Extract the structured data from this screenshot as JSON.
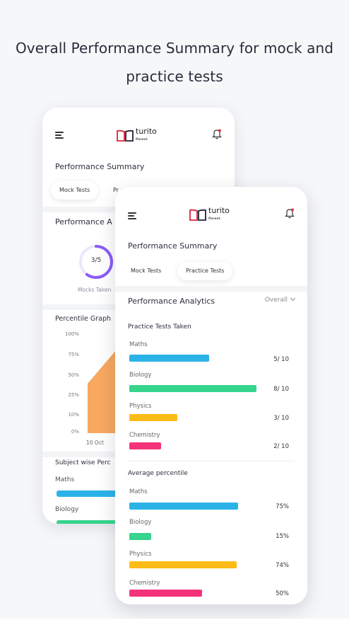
{
  "headline": {
    "line1": "Overall Performance Summary for mock and",
    "line2": "practice tests"
  },
  "logo": {
    "name": "turito",
    "sub": "Parent"
  },
  "colors": {
    "maths": "#2bb3e8",
    "biology": "#36d48c",
    "physics": "#fdbb15",
    "chemistry": "#f5337a",
    "ring": "#8b5cf6",
    "area": "#f8a860"
  },
  "back_phone": {
    "title": "Performance Summary",
    "tabs": [
      "Mock Tests",
      "Pr"
    ],
    "analytics_title": "Performance A",
    "ring_value": "3/5",
    "ring_fraction": 0.6,
    "ring_caption": "Mocks Taken",
    "graph_title": "Percentile Graph",
    "y_ticks": [
      "100%",
      "75%",
      "50%",
      "25%",
      "10%",
      "0%"
    ],
    "x_label": "10 Oct",
    "subject_title": "Subject wise Perc",
    "subjects": [
      "Maths",
      "Biology"
    ]
  },
  "front_phone": {
    "title": "Performance Summary",
    "tabs": [
      "Mock Tests",
      "Practice Tests"
    ],
    "analytics_title": "Performance Analytics",
    "dropdown_value": "Overall",
    "taken_title": "Practice Tests Taken",
    "taken": [
      {
        "label": "Maths",
        "value": "5/ 10",
        "fraction": 0.5
      },
      {
        "label": "Biology",
        "value": "8/ 10",
        "fraction": 0.8
      },
      {
        "label": "Physics",
        "value": "3/ 10",
        "fraction": 0.3
      },
      {
        "label": "Chemistry",
        "value": "2/ 10",
        "fraction": 0.2
      }
    ],
    "avg_title": "Average percentile",
    "average": [
      {
        "label": "Maths",
        "value": "75%",
        "fraction": 0.75
      },
      {
        "label": "Biology",
        "value": "15%",
        "fraction": 0.15
      },
      {
        "label": "Physics",
        "value": "74%",
        "fraction": 0.74
      },
      {
        "label": "Chemistry",
        "value": "50%",
        "fraction": 0.5
      }
    ]
  }
}
